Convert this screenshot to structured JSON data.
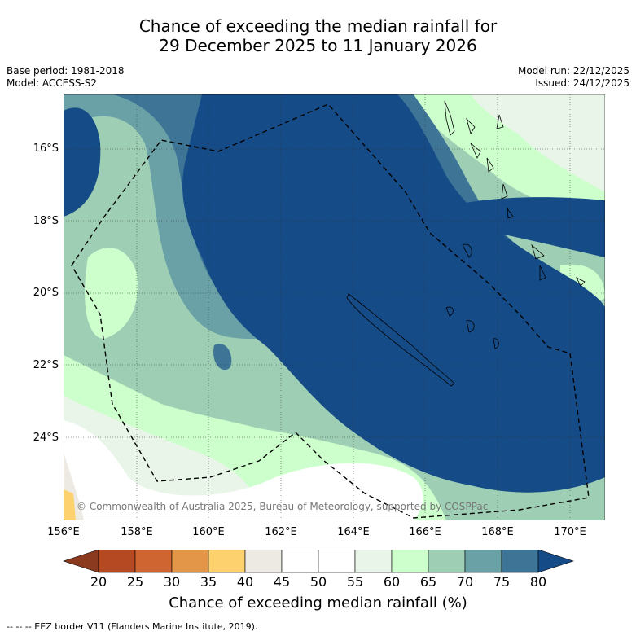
{
  "title_line1": "Chance of exceeding the median rainfall for",
  "title_line2": "29 December 2025 to 11 January 2026",
  "base_period": "Base period: 1981-2018",
  "model": "Model: ACCESS-S2",
  "model_run": "Model run: 22/12/2025",
  "issued": "Issued: 24/12/2025",
  "lat_labels": [
    "16°S",
    "18°S",
    "20°S",
    "22°S",
    "24°S"
  ],
  "lon_labels": [
    "156°E",
    "158°E",
    "160°E",
    "162°E",
    "164°E",
    "166°E",
    "168°E",
    "170°E"
  ],
  "copyright": "© Commonwealth of Australia 2025, Bureau of Meteorology, supported by COSPPac",
  "colorbar": {
    "title": "Chance of exceeding median rainfall (%)",
    "ticks": [
      "20",
      "25",
      "30",
      "35",
      "40",
      "45",
      "50",
      "55",
      "60",
      "65",
      "70",
      "75",
      "80"
    ],
    "colors": [
      "#8c3a1f",
      "#b54a22",
      "#cf6530",
      "#e39548",
      "#fdd16e",
      "#ede9e3",
      "#ffffff",
      "#ffffff",
      "#e8f5e8",
      "#ccffcc",
      "#9ecfb4",
      "#6aa1a6",
      "#3e7596",
      "#154b87"
    ]
  },
  "footer": "--  --  -- EEZ border V11 (Flanders Marine Institute, 2019)."
}
